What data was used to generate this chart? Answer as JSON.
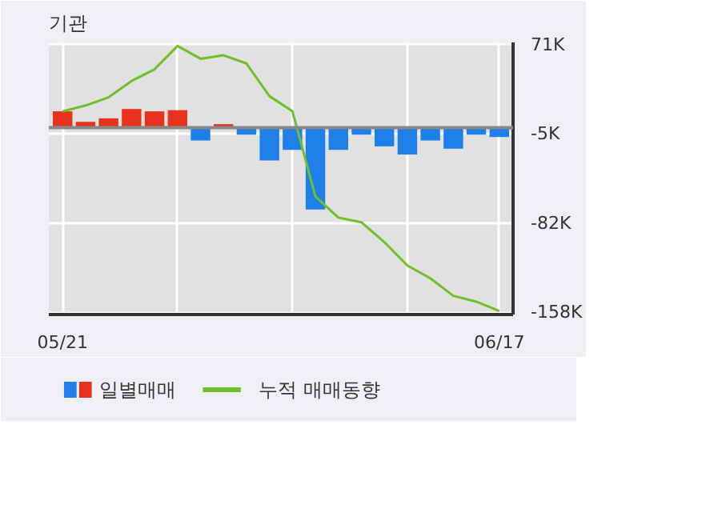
{
  "chart_data": {
    "type": "bar",
    "title": "기관",
    "categories": [
      "05/21",
      null,
      null,
      null,
      null,
      null,
      null,
      null,
      null,
      null,
      null,
      null,
      null,
      null,
      null,
      null,
      null,
      null,
      null,
      "06/17"
    ],
    "series": [
      {
        "name": "일별매매",
        "colors": [
          "#e8321e",
          "#e8321e",
          "#e8321e",
          "#e8321e",
          "#e8321e",
          "#e8321e",
          "#1f7fe8",
          "#e8321e",
          "#1f7fe8",
          "#1f7fe8",
          "#1f7fe8",
          "#1f7fe8",
          "#1f7fe8",
          "#1f7fe8",
          "#1f7fe8",
          "#1f7fe8",
          "#1f7fe8",
          "#1f7fe8",
          "#1f7fe8",
          "#1f7fe8"
        ],
        "values": [
          14,
          5,
          8,
          16,
          14,
          15,
          -11,
          3,
          -6,
          -28,
          -19,
          -70,
          -19,
          -6,
          -16,
          -23,
          -11,
          -18,
          -6,
          -8
        ]
      },
      {
        "name": "누적 매매동향",
        "type": "line",
        "color": "#6ec02a",
        "values": [
          14,
          19,
          26,
          40,
          50,
          70,
          59,
          62,
          55,
          27,
          14,
          -59,
          -77,
          -81,
          -98,
          -118,
          -129,
          -144,
          -149,
          -157
        ]
      }
    ],
    "ylim": [
      -160,
      73
    ],
    "yticks": [
      {
        "value": 71,
        "label": "71K"
      },
      {
        "value": -5,
        "label": "-5K"
      },
      {
        "value": -82,
        "label": "-82K"
      },
      {
        "value": -158,
        "label": "-158K"
      }
    ],
    "grid": true,
    "legend": "bottom"
  }
}
